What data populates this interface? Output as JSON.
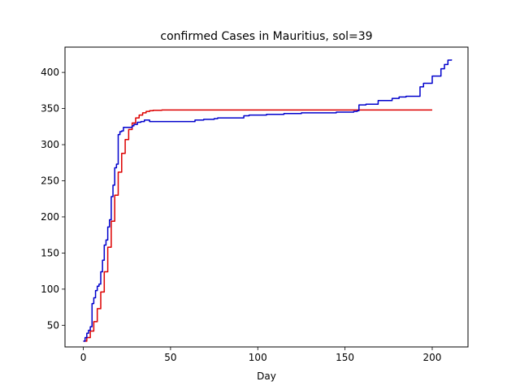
{
  "chart_data": {
    "type": "line",
    "title": "confirmed Cases in Mauritius, sol=39",
    "xlabel": "Day",
    "ylabel": "",
    "xlim": [
      -10.5,
      220.5
    ],
    "ylim": [
      20,
      435
    ],
    "xticks": [
      0,
      50,
      100,
      150,
      200
    ],
    "yticks": [
      50,
      100,
      150,
      200,
      250,
      300,
      350,
      400
    ],
    "grid": false,
    "legend": "none",
    "series": [
      {
        "color": "#dd0000",
        "style": "step",
        "points": [
          [
            0,
            28
          ],
          [
            2,
            33
          ],
          [
            4,
            42
          ],
          [
            6,
            55
          ],
          [
            8,
            73
          ],
          [
            10,
            96
          ],
          [
            12,
            124
          ],
          [
            14,
            158
          ],
          [
            16,
            194
          ],
          [
            18,
            230
          ],
          [
            20,
            262
          ],
          [
            22,
            288
          ],
          [
            24,
            307
          ],
          [
            26,
            321
          ],
          [
            28,
            330
          ],
          [
            30,
            337
          ],
          [
            32,
            341
          ],
          [
            34,
            344
          ],
          [
            36,
            346
          ],
          [
            38,
            347
          ],
          [
            40,
            347.5
          ],
          [
            45,
            348
          ],
          [
            50,
            348
          ],
          [
            100,
            348
          ],
          [
            150,
            348
          ],
          [
            200,
            348
          ]
        ]
      },
      {
        "color": "#0000cc",
        "style": "step",
        "points": [
          [
            0,
            28
          ],
          [
            1,
            33
          ],
          [
            2,
            39
          ],
          [
            3,
            43
          ],
          [
            4,
            48
          ],
          [
            5,
            80
          ],
          [
            6,
            88
          ],
          [
            7,
            98
          ],
          [
            8,
            104
          ],
          [
            9,
            107
          ],
          [
            10,
            124
          ],
          [
            11,
            140
          ],
          [
            12,
            161
          ],
          [
            13,
            168
          ],
          [
            14,
            186
          ],
          [
            15,
            196
          ],
          [
            16,
            228
          ],
          [
            17,
            244
          ],
          [
            18,
            268
          ],
          [
            19,
            273
          ],
          [
            20,
            314
          ],
          [
            21,
            318
          ],
          [
            22,
            319
          ],
          [
            23,
            324
          ],
          [
            24,
            324
          ],
          [
            27,
            324
          ],
          [
            28,
            326
          ],
          [
            29,
            328
          ],
          [
            31,
            331
          ],
          [
            33,
            332
          ],
          [
            35,
            334
          ],
          [
            37,
            334
          ],
          [
            38,
            332
          ],
          [
            40,
            332
          ],
          [
            45,
            332
          ],
          [
            50,
            332
          ],
          [
            55,
            332
          ],
          [
            60,
            332
          ],
          [
            63,
            332
          ],
          [
            64,
            334
          ],
          [
            69,
            335
          ],
          [
            75,
            336
          ],
          [
            77,
            337
          ],
          [
            90,
            337
          ],
          [
            92,
            340
          ],
          [
            95,
            341
          ],
          [
            100,
            341
          ],
          [
            105,
            342
          ],
          [
            112,
            342
          ],
          [
            115,
            343
          ],
          [
            122,
            343
          ],
          [
            125,
            344
          ],
          [
            140,
            344
          ],
          [
            145,
            345
          ],
          [
            150,
            345
          ],
          [
            155,
            346
          ],
          [
            157,
            347
          ],
          [
            158,
            355
          ],
          [
            162,
            356
          ],
          [
            168,
            356
          ],
          [
            169,
            361
          ],
          [
            175,
            361
          ],
          [
            177,
            364
          ],
          [
            181,
            366
          ],
          [
            185,
            367
          ],
          [
            192,
            367
          ],
          [
            193,
            380
          ],
          [
            195,
            385
          ],
          [
            200,
            395
          ],
          [
            204,
            395
          ],
          [
            205,
            405
          ],
          [
            207,
            411
          ],
          [
            209,
            417
          ],
          [
            211,
            418
          ]
        ]
      }
    ]
  }
}
